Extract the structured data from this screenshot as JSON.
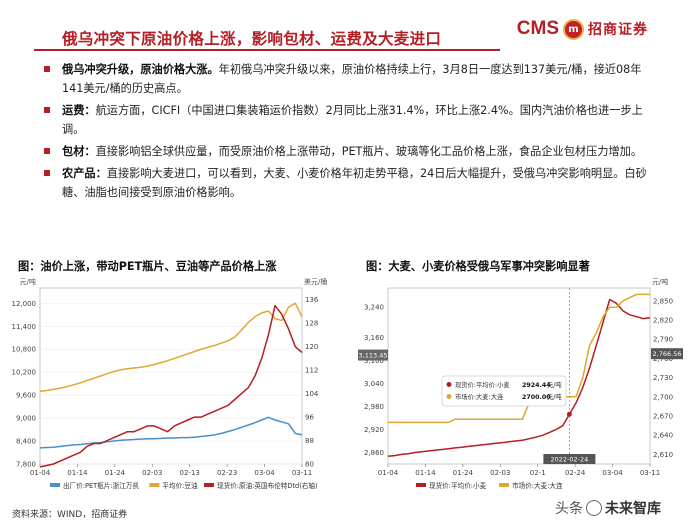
{
  "header": {
    "title": "俄乌冲突下原油价格上涨，影响包材、运费及大麦进口",
    "logo_cms": "CMS",
    "logo_mark": "m",
    "logo_cn": "招商证券",
    "brand_color": "#b41e24"
  },
  "bullets": [
    {
      "lead": "俄乌冲突升级，原油价格大涨。",
      "text": "年初俄乌冲突升级以来，原油价格持续上行，3月8日一度达到137美元/桶，接近08年141美元/桶的历史高点。"
    },
    {
      "lead": "运费：",
      "text": "航运方面，CICFI（中国进口集装箱运价指数）2月同比上涨31.4%，环比上涨2.4%。国内汽油价格也进一步上调。"
    },
    {
      "lead": "包材：",
      "text": "直接影响铝全球供应量，而受原油价格上涨带动，PET瓶片、玻璃等化工品价格上涨，食品企业包材压力增加。"
    },
    {
      "lead": "农产品：",
      "text": "直接影响大麦进口，可以看到，大麦、小麦价格年初走势平稳，24日后大幅提升，受俄乌冲突影响明显。白砂糖、油脂也间接受到原油价格影响。"
    }
  ],
  "footer": {
    "source": "资料来源：WIND，招商证券"
  },
  "watermark": {
    "prefix": "头条",
    "name": "未来智库"
  },
  "chart_data": [
    {
      "type": "line",
      "title": "图：油价上涨，带动PET瓶片、豆油等产品价格上涨",
      "left_unit": "元/吨",
      "right_unit": "美元/桶",
      "x_ticks": [
        "01-04",
        "01-14",
        "01-24",
        "02-03",
        "02-13",
        "02-23",
        "03-04",
        "03-11"
      ],
      "y_left_ticks": [
        "7,800",
        "8,400",
        "9,000",
        "9,600",
        "10,200",
        "10,800",
        "11,400",
        "12,000"
      ],
      "y_right_ticks": [
        "80",
        "88",
        "96",
        "104",
        "112",
        "120",
        "128",
        "136"
      ],
      "ylim_left": [
        7800,
        12400
      ],
      "ylim_right": [
        80,
        140
      ],
      "series": [
        {
          "name": "出厂价:PET瓶片:浙江万凯",
          "axis": "left",
          "color": "#4a90c8",
          "values": [
            8220,
            8230,
            8240,
            8260,
            8280,
            8300,
            8310,
            8330,
            8350,
            8360,
            8380,
            8400,
            8420,
            8430,
            8440,
            8450,
            8460,
            8460,
            8470,
            8480,
            8480,
            8490,
            8490,
            8500,
            8520,
            8540,
            8560,
            8600,
            8650,
            8700,
            8760,
            8820,
            8880,
            8950,
            9020,
            8950,
            8900,
            8850,
            8600,
            8560
          ]
        },
        {
          "name": "平均价:豆油",
          "axis": "left",
          "color": "#e0a82e",
          "values": [
            9700,
            9720,
            9750,
            9780,
            9820,
            9870,
            9920,
            9980,
            10040,
            10100,
            10160,
            10220,
            10260,
            10290,
            10310,
            10330,
            10360,
            10400,
            10450,
            10500,
            10560,
            10620,
            10680,
            10740,
            10800,
            10850,
            10900,
            10960,
            11020,
            11120,
            11300,
            11500,
            11650,
            11750,
            11800,
            11600,
            11550,
            11900,
            12000,
            11650
          ]
        },
        {
          "name": "现货价:原油:英国布伦特Dtd(右轴)",
          "axis": "right",
          "color": "#b41e24",
          "values": [
            79,
            79.5,
            80,
            81,
            82,
            83,
            84,
            86,
            87,
            87,
            88,
            89,
            90,
            91,
            91,
            92,
            93,
            93,
            92,
            91,
            93,
            94,
            95,
            96,
            96,
            97,
            98,
            99,
            100,
            102,
            104,
            106,
            110,
            116,
            124,
            134,
            131,
            126,
            120,
            118
          ]
        }
      ]
    },
    {
      "type": "line",
      "title": "图：大麦、小麦价格受俄乌军事冲突影响显著",
      "left_unit": "",
      "right_unit": "元/吨",
      "x_ticks": [
        "01-04",
        "01-14",
        "01-24",
        "02-03",
        "02-1",
        "02-24",
        "03-04",
        "03-11"
      ],
      "y_left_ticks": [
        "2,860",
        "2,920",
        "2,980",
        "3,040",
        "3,100",
        "3,160",
        "3,240"
      ],
      "y_right_ticks": [
        "2,610",
        "2,640",
        "2,670",
        "2,700",
        "2,730",
        "2,760",
        "2,790",
        "2,820",
        "2,850"
      ],
      "ylim_left": [
        2830,
        3290
      ],
      "ylim_right": [
        2595,
        2870
      ],
      "ref_left": "3,113.45",
      "ref_right": "2,766.56",
      "marker_date": "2022-02-24",
      "tooltip": [
        {
          "label": "现货价:平均价:小麦",
          "value": "2924.44",
          "unit": "元/吨",
          "color": "#b41e24"
        },
        {
          "label": "市场价:大麦:大连",
          "value": "2700.00",
          "unit": "元/吨",
          "color": "#e0a82e"
        }
      ],
      "series": [
        {
          "name": "现货价:平均价:小麦",
          "axis": "left",
          "color": "#b41e24",
          "values": [
            2850,
            2852,
            2855,
            2857,
            2860,
            2862,
            2864,
            2866,
            2868,
            2870,
            2872,
            2874,
            2876,
            2878,
            2880,
            2882,
            2884,
            2886,
            2888,
            2890,
            2892,
            2896,
            2900,
            2905,
            2912,
            2920,
            2930,
            2960,
            2990,
            3030,
            3080,
            3140,
            3200,
            3260,
            3250,
            3230,
            3220,
            3215,
            3210,
            3212
          ]
        },
        {
          "name": "市场价:大麦:大连",
          "axis": "right",
          "color": "#e0a82e",
          "values": [
            2660,
            2660,
            2660,
            2660,
            2660,
            2660,
            2660,
            2660,
            2660,
            2660,
            2665,
            2665,
            2665,
            2665,
            2665,
            2665,
            2665,
            2665,
            2665,
            2665,
            2665,
            2690,
            2690,
            2690,
            2690,
            2690,
            2700,
            2700,
            2700,
            2730,
            2780,
            2800,
            2825,
            2840,
            2840,
            2850,
            2855,
            2860,
            2860,
            2860
          ]
        }
      ]
    }
  ]
}
